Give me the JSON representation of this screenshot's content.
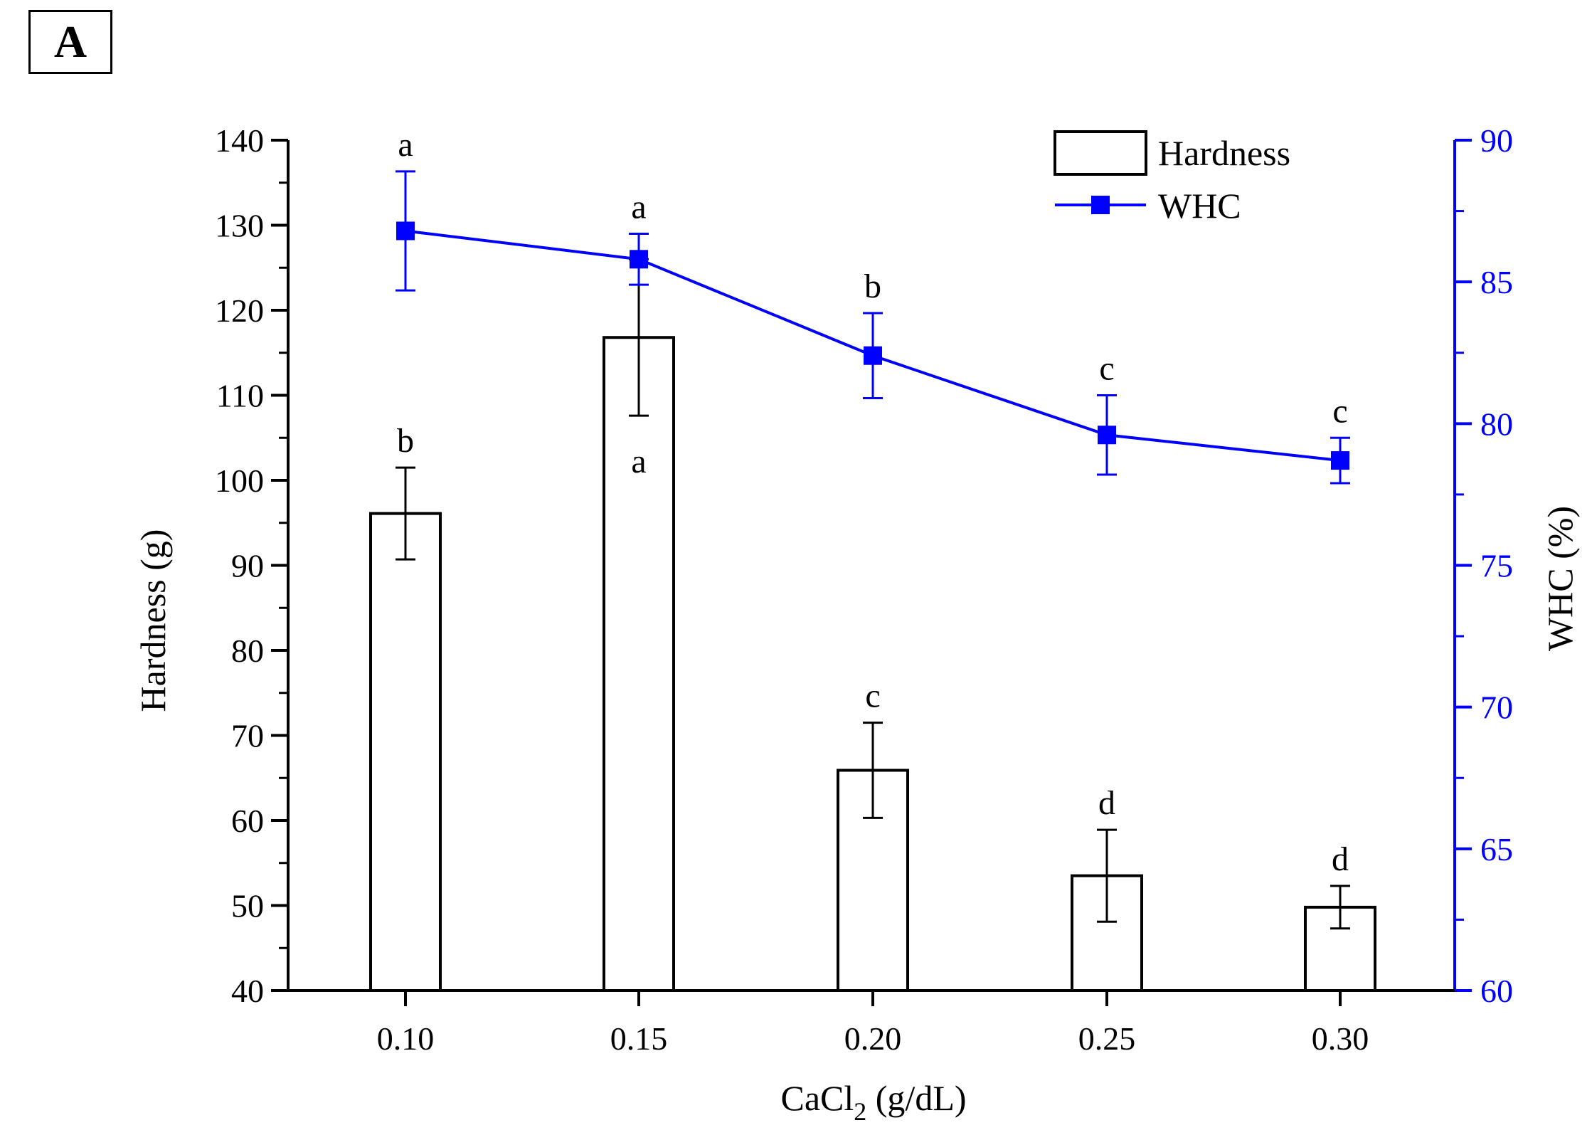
{
  "panel_label": "A",
  "chart_data": {
    "type": "bar+line",
    "categories": [
      "0.10",
      "0.15",
      "0.20",
      "0.25",
      "0.30"
    ],
    "xlabel_main": "CaCl",
    "xlabel_sub": "2",
    "xlabel_unit": " (g/dL)",
    "left_axis": {
      "label": "Hardness (g)",
      "ylim": [
        40,
        140
      ],
      "ticks": [
        "40",
        "50",
        "60",
        "70",
        "80",
        "90",
        "100",
        "110",
        "120",
        "130",
        "140"
      ],
      "color": "#000000"
    },
    "right_axis": {
      "label": "WHC (%)",
      "ylim": [
        60,
        90
      ],
      "ticks": [
        "60",
        "65",
        "70",
        "75",
        "80",
        "85",
        "90"
      ],
      "color": "#0000ff"
    },
    "series": [
      {
        "name": "Hardness",
        "type": "bar",
        "axis": "left",
        "values": [
          96.1,
          116.8,
          65.9,
          53.5,
          49.8
        ],
        "errors": [
          5.4,
          9.2,
          5.6,
          5.4,
          2.5
        ],
        "letters": [
          "b",
          "a",
          "c",
          "d",
          "d"
        ]
      },
      {
        "name": "WHC",
        "type": "line",
        "axis": "right",
        "color": "#0000ff",
        "values": [
          86.8,
          85.8,
          82.4,
          79.6,
          78.7
        ],
        "errors": [
          2.1,
          0.9,
          1.5,
          1.4,
          0.8
        ],
        "letters": [
          "a",
          "a",
          "b",
          "c",
          "c"
        ]
      }
    ]
  }
}
